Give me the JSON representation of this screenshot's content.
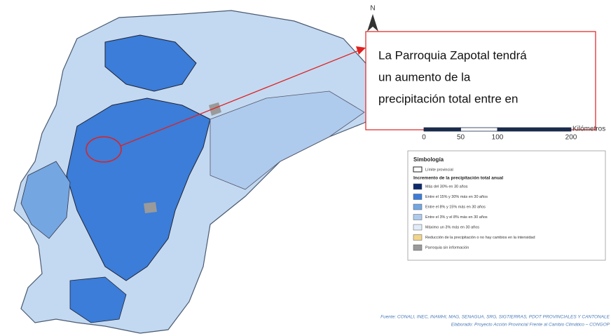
{
  "north": "N",
  "callout": {
    "lines": [
      "La Parroquia Zapotal tendrá",
      "un aumento de la",
      "precipitación total entre en"
    ]
  },
  "scale_bar": {
    "unit": "Kilómetros",
    "ticks": [
      0,
      50,
      100,
      200
    ]
  },
  "legend": {
    "title": "Simbología",
    "boundary": "Límite provincial",
    "subtitle": "Incremento de la precipitación total anual",
    "items": [
      {
        "label": "Más del 30% en 30 años",
        "color": "#0d2a6b"
      },
      {
        "label": "Entre el 15% y 30% más en 30 años",
        "color": "#3b7dd8"
      },
      {
        "label": "Entre el 8% y 15% más en 30 años",
        "color": "#74a6e2"
      },
      {
        "label": "Entre el 3% y el 8% más en 30 años",
        "color": "#aecbee"
      },
      {
        "label": "Máximo un 3% más en 30 años",
        "color": "#e2ecf8"
      },
      {
        "label": "Reducción de la precipitación o no hay cambios en la intensidad",
        "color": "#f2d58a"
      },
      {
        "label": "Parroquia sin información",
        "color": "#9a9a9a"
      }
    ]
  },
  "source": [
    "Fuente: CONALI, INEC, INAMHI, MAG, SENAGUA, SRG, SIGTIERRAS, PDOT PROVINCIALES Y CANTONALE",
    "Elaborado: Proyecto Acción Provincial Frente al Cambio Climático – CONGOP"
  ]
}
